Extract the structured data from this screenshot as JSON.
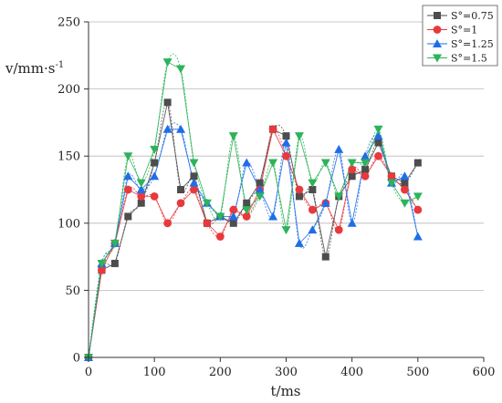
{
  "chart_data": {
    "type": "line",
    "title": "",
    "xlabel": "t/ms",
    "ylabel": "v/mm·s",
    "ylabel_superscript": "-1",
    "xlim": [
      0,
      600
    ],
    "ylim": [
      0,
      250
    ],
    "xticks": [
      "0",
      "100",
      "200",
      "300",
      "400",
      "500",
      "600"
    ],
    "yticks": [
      "0",
      "50",
      "100",
      "150",
      "200",
      "250"
    ],
    "grid": "horizontal",
    "legend_position": "top-right",
    "smoothed": true,
    "x": [
      0,
      20,
      40,
      60,
      80,
      100,
      120,
      140,
      160,
      180,
      200,
      220,
      240,
      260,
      280,
      300,
      320,
      340,
      360,
      380,
      400,
      420,
      440,
      460,
      480,
      500
    ],
    "series": [
      {
        "name": "S°=0.75",
        "marker": "square",
        "color": "#4d4d4d",
        "values": [
          0,
          65,
          70,
          105,
          115,
          145,
          190,
          125,
          135,
          100,
          105,
          100,
          115,
          130,
          170,
          165,
          120,
          125,
          75,
          120,
          135,
          140,
          160,
          135,
          130,
          145
        ]
      },
      {
        "name": "S°=1",
        "marker": "circle",
        "color": "#e8393d",
        "values": [
          0,
          65,
          85,
          125,
          120,
          120,
          100,
          115,
          125,
          100,
          90,
          110,
          105,
          125,
          170,
          150,
          125,
          110,
          115,
          95,
          140,
          135,
          150,
          135,
          125,
          110
        ]
      },
      {
        "name": "S°=1.25",
        "marker": "triangle-up",
        "color": "#1f6ee8",
        "values": [
          0,
          70,
          85,
          135,
          125,
          135,
          170,
          170,
          130,
          115,
          105,
          105,
          145,
          125,
          105,
          160,
          85,
          95,
          115,
          155,
          100,
          150,
          165,
          130,
          135,
          90
        ]
      },
      {
        "name": "S°=1.5",
        "marker": "triangle-down",
        "color": "#2db35a",
        "values": [
          0,
          70,
          85,
          150,
          130,
          155,
          220,
          215,
          145,
          115,
          105,
          165,
          110,
          120,
          145,
          95,
          165,
          130,
          145,
          120,
          145,
          145,
          170,
          130,
          115,
          120
        ]
      }
    ]
  }
}
